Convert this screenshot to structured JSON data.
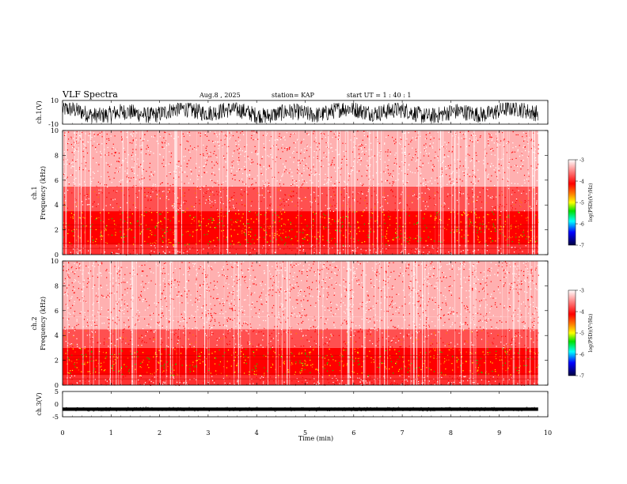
{
  "header": {
    "title": "VLF Spectra",
    "date": "Aug.8 , 2025",
    "station": "station= KAP",
    "start": "start UT = 1 : 40 : 1"
  },
  "colors": {
    "background_low": "#ffffff",
    "red": "#ff0000",
    "orange": "#ff8000",
    "yellow": "#ffff00",
    "green": "#00e000",
    "cyan": "#00ffff",
    "blue": "#0000ff",
    "navy": "#000040"
  },
  "chart_data": [
    {
      "type": "line",
      "id": "ch1-waveform",
      "ylabel": "ch.1(V)",
      "ylim": [
        -10,
        10
      ],
      "yticks": [
        "10",
        "-10"
      ],
      "xlim": [
        0,
        10
      ],
      "description_values": {
        "min": -10,
        "max": 10,
        "typical_band": [
          -9,
          8
        ]
      }
    },
    {
      "type": "heatmap",
      "id": "ch1-spectrogram",
      "ylabel": "ch.1\nFrequency (kHz)",
      "ylabel_top": "ch.1",
      "ylabel_bottom": "Frequency (kHz)",
      "ylim": [
        0,
        10
      ],
      "yticks": [
        "0",
        "2",
        "4",
        "6",
        "8",
        "10"
      ],
      "xlim": [
        0,
        9.8
      ],
      "colorbar": {
        "label": "log(PSD)(V²/Hz)",
        "range": [
          -7,
          -3
        ],
        "ticks": [
          "-3",
          "-4",
          "-5",
          "-6",
          "-7"
        ]
      },
      "bands_khz": {
        "strong": [
          0.8,
          3.5
        ],
        "moderate": [
          3.5,
          5.5
        ],
        "weak": [
          5.5,
          10
        ]
      }
    },
    {
      "type": "heatmap",
      "id": "ch2-spectrogram",
      "ylabel_top": "ch.2",
      "ylabel_bottom": "Frequency (kHz)",
      "ylim": [
        0,
        10
      ],
      "yticks": [
        "0",
        "2",
        "4",
        "6",
        "8",
        "10"
      ],
      "xlim": [
        0,
        9.8
      ],
      "colorbar": {
        "label": "log(PSD)(V²/Hz)",
        "range": [
          -7,
          -3
        ],
        "ticks": [
          "-3",
          "-4",
          "-5",
          "-6",
          "-7"
        ]
      },
      "bands_khz": {
        "strong": [
          0.8,
          3.0
        ],
        "moderate": [
          3.0,
          4.5
        ],
        "weak": [
          4.5,
          10
        ]
      }
    },
    {
      "type": "line",
      "id": "ch3-waveform",
      "ylabel": "ch.3(V)",
      "ylim": [
        -5,
        5
      ],
      "yticks": [
        "5",
        "0",
        "-5"
      ],
      "xlim": [
        0,
        10
      ],
      "description_values": {
        "level": -2,
        "spread": 0.3
      }
    }
  ],
  "xaxis": {
    "label": "Time (min)",
    "ticks": [
      "0",
      "1",
      "2",
      "3",
      "4",
      "5",
      "6",
      "7",
      "8",
      "9",
      "10"
    ]
  }
}
